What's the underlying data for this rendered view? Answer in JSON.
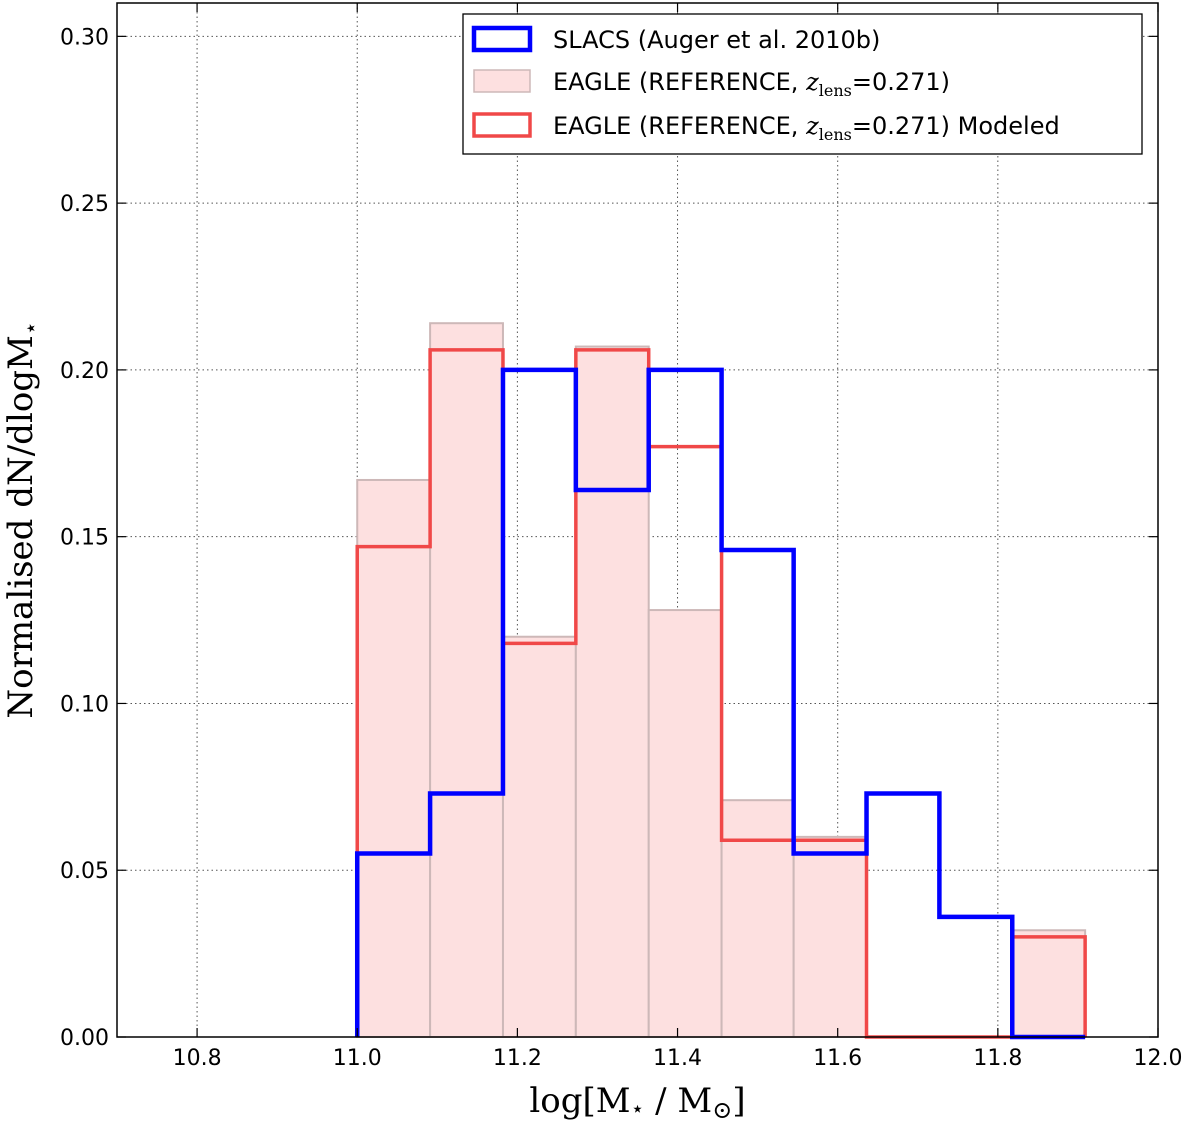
{
  "chart_data": {
    "type": "bar",
    "xlabel_main": "log[M",
    "xlabel_star": "⋆",
    "xlabel_mid": " / M",
    "xlabel_sun": "⊙",
    "xlabel_end": "]",
    "ylabel_main": "Normalised dN/dlogM",
    "ylabel_star": "⋆",
    "xlim": [
      10.7,
      12.0
    ],
    "ylim": [
      0.0,
      0.31
    ],
    "xticks": [
      10.8,
      11.0,
      11.2,
      11.4,
      11.6,
      11.8,
      12.0
    ],
    "xtick_labels": [
      "10.8",
      "11.0",
      "11.2",
      "11.4",
      "11.6",
      "11.8",
      "12.0"
    ],
    "yticks": [
      0.0,
      0.05,
      0.1,
      0.15,
      0.2,
      0.25,
      0.3
    ],
    "ytick_labels": [
      "0.00",
      "0.05",
      "0.10",
      "0.15",
      "0.20",
      "0.25",
      "0.30"
    ],
    "grid": true,
    "legend_position": "top-right",
    "bin_edges": [
      11.0,
      11.091,
      11.182,
      11.273,
      11.364,
      11.455,
      11.545,
      11.636,
      11.727,
      11.818,
      11.909
    ],
    "series": [
      {
        "name": "SLACS (Auger et al. 2010b)",
        "legend_parts": {
          "a": "SLACS (Auger et al. 2010b)"
        },
        "style": "step",
        "color": "#0000ff",
        "values": [
          0.055,
          0.073,
          0.2,
          0.164,
          0.2,
          0.146,
          0.055,
          0.073,
          0.036,
          0.0
        ]
      },
      {
        "name": "EAGLE (REFERENCE, z_lens=0.271)",
        "legend_parts": {
          "a": "EAGLE (REFERENCE, ",
          "z": "z",
          "sub": "lens",
          "b": "=0.271)"
        },
        "style": "filled",
        "color": "#fde0e0",
        "edge_color": "#cdb8b8",
        "values": [
          0.167,
          0.214,
          0.12,
          0.207,
          0.128,
          0.071,
          0.06,
          0.0,
          0.0,
          0.032
        ]
      },
      {
        "name": "EAGLE (REFERENCE, z_lens=0.271) Modeled",
        "legend_parts": {
          "a": "EAGLE (REFERENCE, ",
          "z": "z",
          "sub": "lens",
          "b": "=0.271) Modeled"
        },
        "style": "step",
        "color": "#f04848",
        "values": [
          0.147,
          0.206,
          0.118,
          0.206,
          0.177,
          0.059,
          0.059,
          0.0,
          0.0,
          0.03
        ]
      }
    ]
  }
}
